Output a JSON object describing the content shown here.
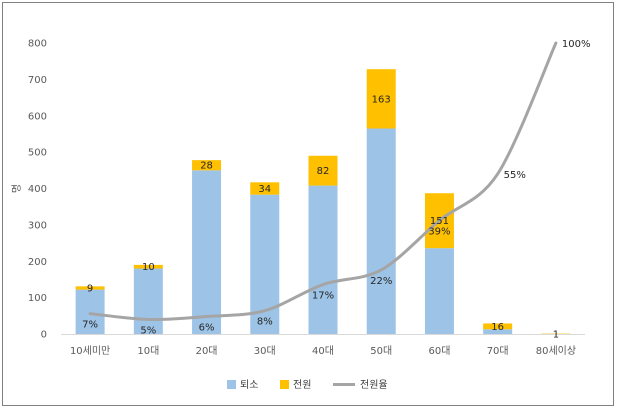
{
  "chart_data": {
    "type": "bar",
    "stacked": true,
    "ylabel": "명",
    "ylim": [
      0,
      800
    ],
    "yticks": [
      0,
      100,
      200,
      300,
      400,
      500,
      600,
      700,
      800
    ],
    "categories": [
      "10세미만",
      "10대",
      "20대",
      "30대",
      "40대",
      "50대",
      "60대",
      "70대",
      "80세이상"
    ],
    "series": [
      {
        "name": "퇴소",
        "type": "bar",
        "color": "#9dc3e6",
        "values": [
          122,
          180,
          450,
          383,
          408,
          565,
          236,
          13,
          0
        ]
      },
      {
        "name": "전원",
        "type": "bar",
        "color": "#ffc000",
        "values": [
          9,
          10,
          28,
          34,
          82,
          163,
          151,
          16,
          1
        ],
        "labels": [
          "9",
          "10",
          "28",
          "34",
          "82",
          "163",
          "151",
          "16",
          "1"
        ]
      },
      {
        "name": "전원율",
        "type": "line",
        "color": "#a5a5a5",
        "values": [
          7,
          5,
          6,
          8,
          17,
          22,
          39,
          55,
          100
        ],
        "labels": [
          "7%",
          "5%",
          "6%",
          "8%",
          "17%",
          "22%",
          "39%",
          "55%",
          "100%"
        ]
      }
    ],
    "grid": false,
    "legend": "bottom"
  }
}
